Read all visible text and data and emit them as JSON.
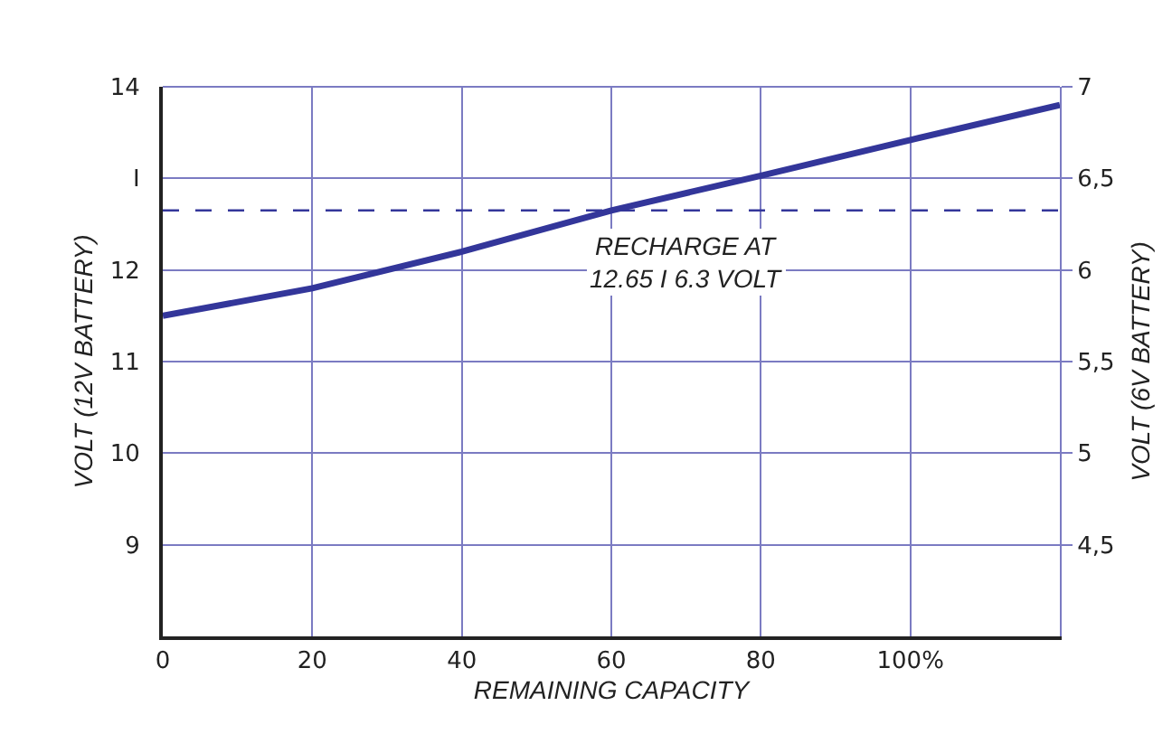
{
  "chart_data": {
    "type": "line",
    "x": [
      0,
      20,
      40,
      60,
      80,
      100,
      120
    ],
    "series": [
      {
        "color": "#33369a",
        "values": [
          11.5,
          11.8,
          12.2,
          12.65,
          13.03,
          13.42,
          13.8
        ]
      }
    ],
    "xlabel": "REMAINING CAPACITY",
    "ylabel": "VOLT (12V BATTERY)",
    "y2label": "VOLT (6V BATTERY)",
    "xlim": [
      0,
      120
    ],
    "xticks": [
      0,
      20,
      40,
      60,
      80,
      {
        "value": 100,
        "label": "100%"
      }
    ],
    "ylim": [
      8,
      14
    ],
    "yticks": [
      9,
      10,
      11,
      12,
      {
        "value": 13,
        "label": "I"
      },
      14
    ],
    "y2lim": [
      4,
      7
    ],
    "y2ticks": [
      {
        "value": 4.5,
        "label": "4,5"
      },
      5,
      {
        "value": 5.5,
        "label": "5,5"
      },
      6,
      {
        "value": 6.5,
        "label": "6,5"
      },
      7
    ],
    "ref_lines": [
      {
        "axis": "y",
        "value": 12.65,
        "label": "RECHARGE AT\n12.65 I 6.3 VOLT",
        "color": "#33369a",
        "line_style": "dashed"
      }
    ],
    "grid": true,
    "marker": "none",
    "line_style": "solid"
  }
}
